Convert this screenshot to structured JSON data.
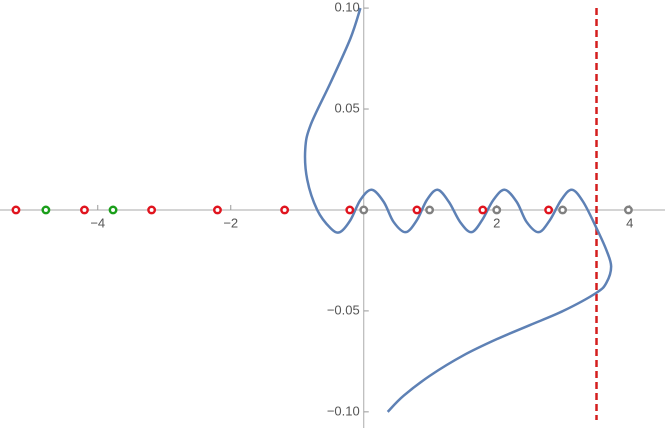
{
  "chart_data": {
    "type": "line",
    "xlim": [
      -5.47,
      4.53
    ],
    "ylim": [
      -0.108,
      0.104
    ],
    "xticks": [
      {
        "value": -4,
        "label": "−4"
      },
      {
        "value": -2,
        "label": "−2"
      },
      2,
      4
    ],
    "yticks": [
      {
        "value": 0.1,
        "label": "0.10"
      },
      0.05,
      {
        "value": -0.05,
        "label": "−0.05"
      },
      {
        "value": -0.1,
        "label": "−0.10"
      }
    ],
    "series": [
      {
        "color": "#5e81b5",
        "x": [
          -0.05,
          -0.2,
          -0.5,
          -0.8,
          -0.88,
          -0.85,
          -0.7,
          -0.5,
          -0.36,
          -0.2,
          -0.05,
          0.12,
          0.3,
          0.45,
          0.63,
          0.8,
          0.95,
          1.11,
          1.28,
          1.45,
          1.62,
          1.78,
          1.95,
          2.12,
          2.3,
          2.45,
          2.63,
          2.8,
          2.97,
          3.13,
          3.3,
          3.5,
          3.65,
          3.72,
          3.65,
          3.5,
          3.0,
          2.5,
          2.0,
          1.5,
          1.0,
          0.6,
          0.36
        ],
        "values": [
          0.1,
          0.085,
          0.063,
          0.042,
          0.03,
          0.015,
          0.0,
          -0.009,
          -0.011,
          -0.005,
          0.005,
          0.01,
          0.004,
          -0.006,
          -0.011,
          -0.005,
          0.005,
          0.01,
          0.004,
          -0.006,
          -0.011,
          -0.005,
          0.005,
          0.01,
          0.004,
          -0.006,
          -0.011,
          -0.005,
          0.005,
          0.01,
          0.004,
          -0.009,
          -0.02,
          -0.028,
          -0.036,
          -0.041,
          -0.05,
          -0.057,
          -0.064,
          -0.072,
          -0.082,
          -0.092,
          -0.1
        ]
      }
    ],
    "points": [
      {
        "color": "#e0141e",
        "x": [
          -5.23,
          -4.2,
          -3.19,
          -2.2,
          -1.19,
          -0.21,
          0.8,
          1.79,
          2.78
        ],
        "values": [
          0,
          0,
          0,
          0,
          0,
          0,
          0,
          0,
          0
        ]
      },
      {
        "color": "#1a9e1a",
        "x": [
          -4.78,
          -3.77
        ],
        "values": [
          0,
          0
        ]
      },
      {
        "color": "#808080",
        "x": [
          0,
          0.99,
          2.0,
          2.99,
          3.98
        ],
        "values": [
          0,
          0,
          0,
          0,
          0
        ]
      }
    ],
    "vlines": [
      {
        "x": 3.5,
        "color": "#d41e1e"
      }
    ]
  }
}
